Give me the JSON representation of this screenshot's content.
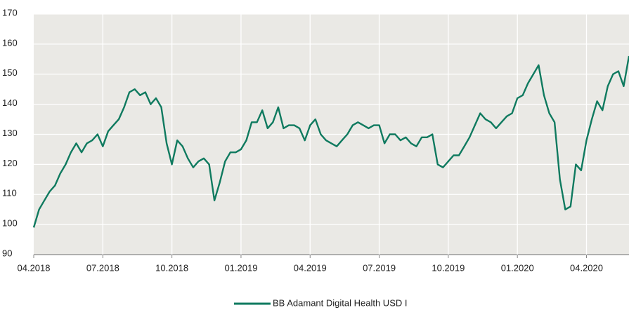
{
  "chart_data": {
    "type": "line",
    "categories": [
      "04.2018",
      null,
      null,
      null,
      null,
      null,
      null,
      null,
      null,
      null,
      null,
      null,
      null,
      "07.2018",
      null,
      null,
      null,
      null,
      null,
      null,
      null,
      null,
      null,
      null,
      null,
      null,
      "10.2018",
      null,
      null,
      null,
      null,
      null,
      null,
      null,
      null,
      null,
      null,
      null,
      null,
      "01.2019",
      null,
      null,
      null,
      null,
      null,
      null,
      null,
      null,
      null,
      null,
      null,
      null,
      "04.2019",
      null,
      null,
      null,
      null,
      null,
      null,
      null,
      null,
      null,
      null,
      null,
      null,
      "07.2019",
      null,
      null,
      null,
      null,
      null,
      null,
      null,
      null,
      null,
      null,
      null,
      null,
      "10.2019",
      null,
      null,
      null,
      null,
      null,
      null,
      null,
      null,
      null,
      null,
      null,
      null,
      "01.2020",
      null,
      null,
      null,
      null,
      null,
      null,
      null,
      null,
      null,
      null,
      null,
      null,
      "04.2020",
      null,
      null,
      null,
      null,
      null,
      null,
      null,
      null
    ],
    "series": [
      {
        "name": "BB Adamant Digital Health USD I",
        "color": "#0f7a5f",
        "values": [
          99,
          105,
          108,
          111,
          113,
          117,
          120,
          124,
          127,
          124,
          127,
          128,
          130,
          126,
          131,
          133,
          135,
          139,
          144,
          145,
          143,
          144,
          140,
          142,
          139,
          127,
          120,
          128,
          126,
          122,
          119,
          121,
          122,
          120,
          108,
          114,
          121,
          124,
          124,
          125,
          128,
          134,
          134,
          138,
          132,
          134,
          139,
          132,
          133,
          133,
          132,
          128,
          133,
          135,
          130,
          128,
          127,
          126,
          128,
          130,
          133,
          134,
          133,
          132,
          133,
          133,
          127,
          130,
          130,
          128,
          129,
          127,
          126,
          129,
          129,
          130,
          120,
          119,
          121,
          123,
          123,
          126,
          129,
          133,
          137,
          135,
          134,
          132,
          134,
          136,
          137,
          142,
          143,
          147,
          150,
          153,
          143,
          137,
          134,
          115,
          105,
          106,
          120,
          118,
          128,
          135,
          141,
          138,
          146,
          150,
          151,
          146,
          156
        ]
      }
    ],
    "ylim": [
      90,
      170
    ],
    "yticks": [
      90,
      100,
      110,
      120,
      130,
      140,
      150,
      160,
      170
    ],
    "grid": true
  }
}
